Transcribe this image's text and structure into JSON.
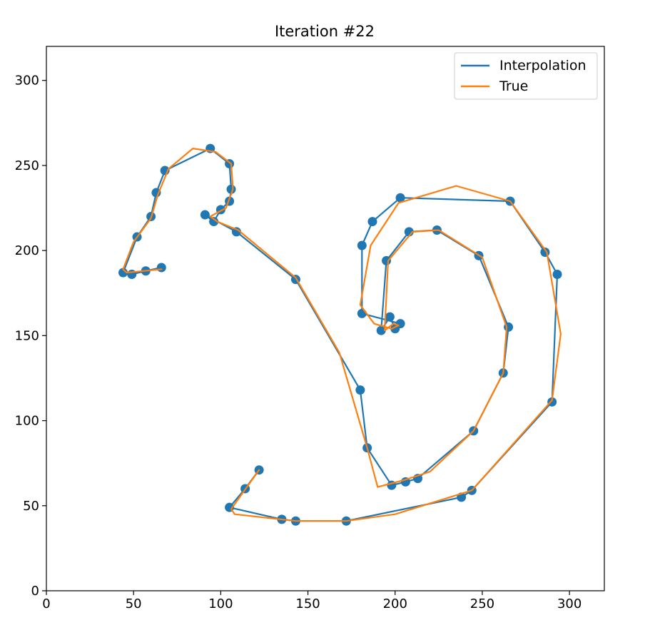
{
  "chart_data": {
    "type": "line",
    "title": "Iteration #22",
    "xlabel": "",
    "ylabel": "",
    "xlim": [
      0,
      320
    ],
    "ylim": [
      0,
      320
    ],
    "xticks": [
      0,
      50,
      100,
      150,
      200,
      250,
      300
    ],
    "yticks": [
      0,
      50,
      100,
      150,
      200,
      250,
      300
    ],
    "grid": false,
    "legend_position": "top-right",
    "colors": {
      "interpolation": "#1f77b4",
      "true": "#ff7f0e",
      "points": "#1f77b4"
    },
    "points": {
      "x": [
        66,
        57,
        49,
        44,
        52,
        60,
        63,
        68,
        94,
        105,
        106,
        105,
        100,
        96,
        91,
        109,
        143,
        180,
        184,
        198,
        206,
        213,
        245,
        262,
        265,
        248,
        224,
        208,
        195,
        192,
        197,
        200,
        203,
        181,
        181,
        187,
        203,
        266,
        286,
        293,
        290,
        244,
        238,
        172,
        143,
        135,
        105,
        114,
        122
      ],
      "y": [
        190,
        188,
        186,
        187,
        208,
        220,
        234,
        247,
        260,
        251,
        236,
        229,
        224,
        217,
        221,
        211,
        183,
        118,
        84,
        62,
        64,
        66,
        94,
        128,
        155,
        197,
        212,
        211,
        194,
        153,
        161,
        154,
        157,
        163,
        203,
        217,
        231,
        229,
        199,
        186,
        111,
        59,
        55,
        41,
        41,
        42,
        49,
        60,
        71
      ]
    },
    "series": [
      {
        "name": "Interpolation",
        "x": [
          66,
          57,
          49,
          44,
          52,
          60,
          63,
          68,
          94,
          105,
          106,
          105,
          100,
          96,
          91,
          109,
          143,
          180,
          184,
          198,
          206,
          213,
          245,
          262,
          265,
          248,
          224,
          208,
          195,
          192,
          197,
          200,
          203,
          181,
          181,
          187,
          203,
          266,
          286,
          293,
          290,
          244,
          238,
          172,
          143,
          135,
          105,
          114,
          122
        ],
        "y": [
          190,
          188,
          186,
          187,
          208,
          220,
          234,
          247,
          260,
          251,
          236,
          229,
          224,
          217,
          221,
          211,
          183,
          118,
          84,
          62,
          64,
          66,
          94,
          128,
          155,
          197,
          212,
          211,
          194,
          153,
          161,
          154,
          157,
          163,
          203,
          217,
          231,
          229,
          199,
          186,
          111,
          59,
          55,
          41,
          41,
          42,
          49,
          60,
          71
        ]
      },
      {
        "name": "True",
        "x": [
          66,
          56,
          46,
          44,
          50,
          60,
          64,
          70,
          84,
          97,
          106,
          107,
          103,
          94,
          98,
          110,
          143,
          168,
          184,
          190,
          205,
          220,
          245,
          262,
          264,
          250,
          225,
          210,
          196,
          194,
          199,
          202,
          198,
          188,
          180,
          186,
          202,
          235,
          266,
          287,
          295,
          290,
          244,
          200,
          172,
          143,
          108,
          106,
          122
        ],
        "y": [
          189,
          188,
          187,
          189,
          205,
          219,
          233,
          248,
          260,
          258,
          251,
          236,
          225,
          220,
          217,
          212,
          184,
          140,
          84,
          61,
          65,
          70,
          94,
          128,
          155,
          196,
          212,
          211,
          194,
          153,
          157,
          156,
          154,
          157,
          168,
          203,
          228,
          238,
          229,
          199,
          151,
          112,
          59,
          45,
          41,
          41,
          45,
          48,
          71
        ]
      }
    ]
  }
}
